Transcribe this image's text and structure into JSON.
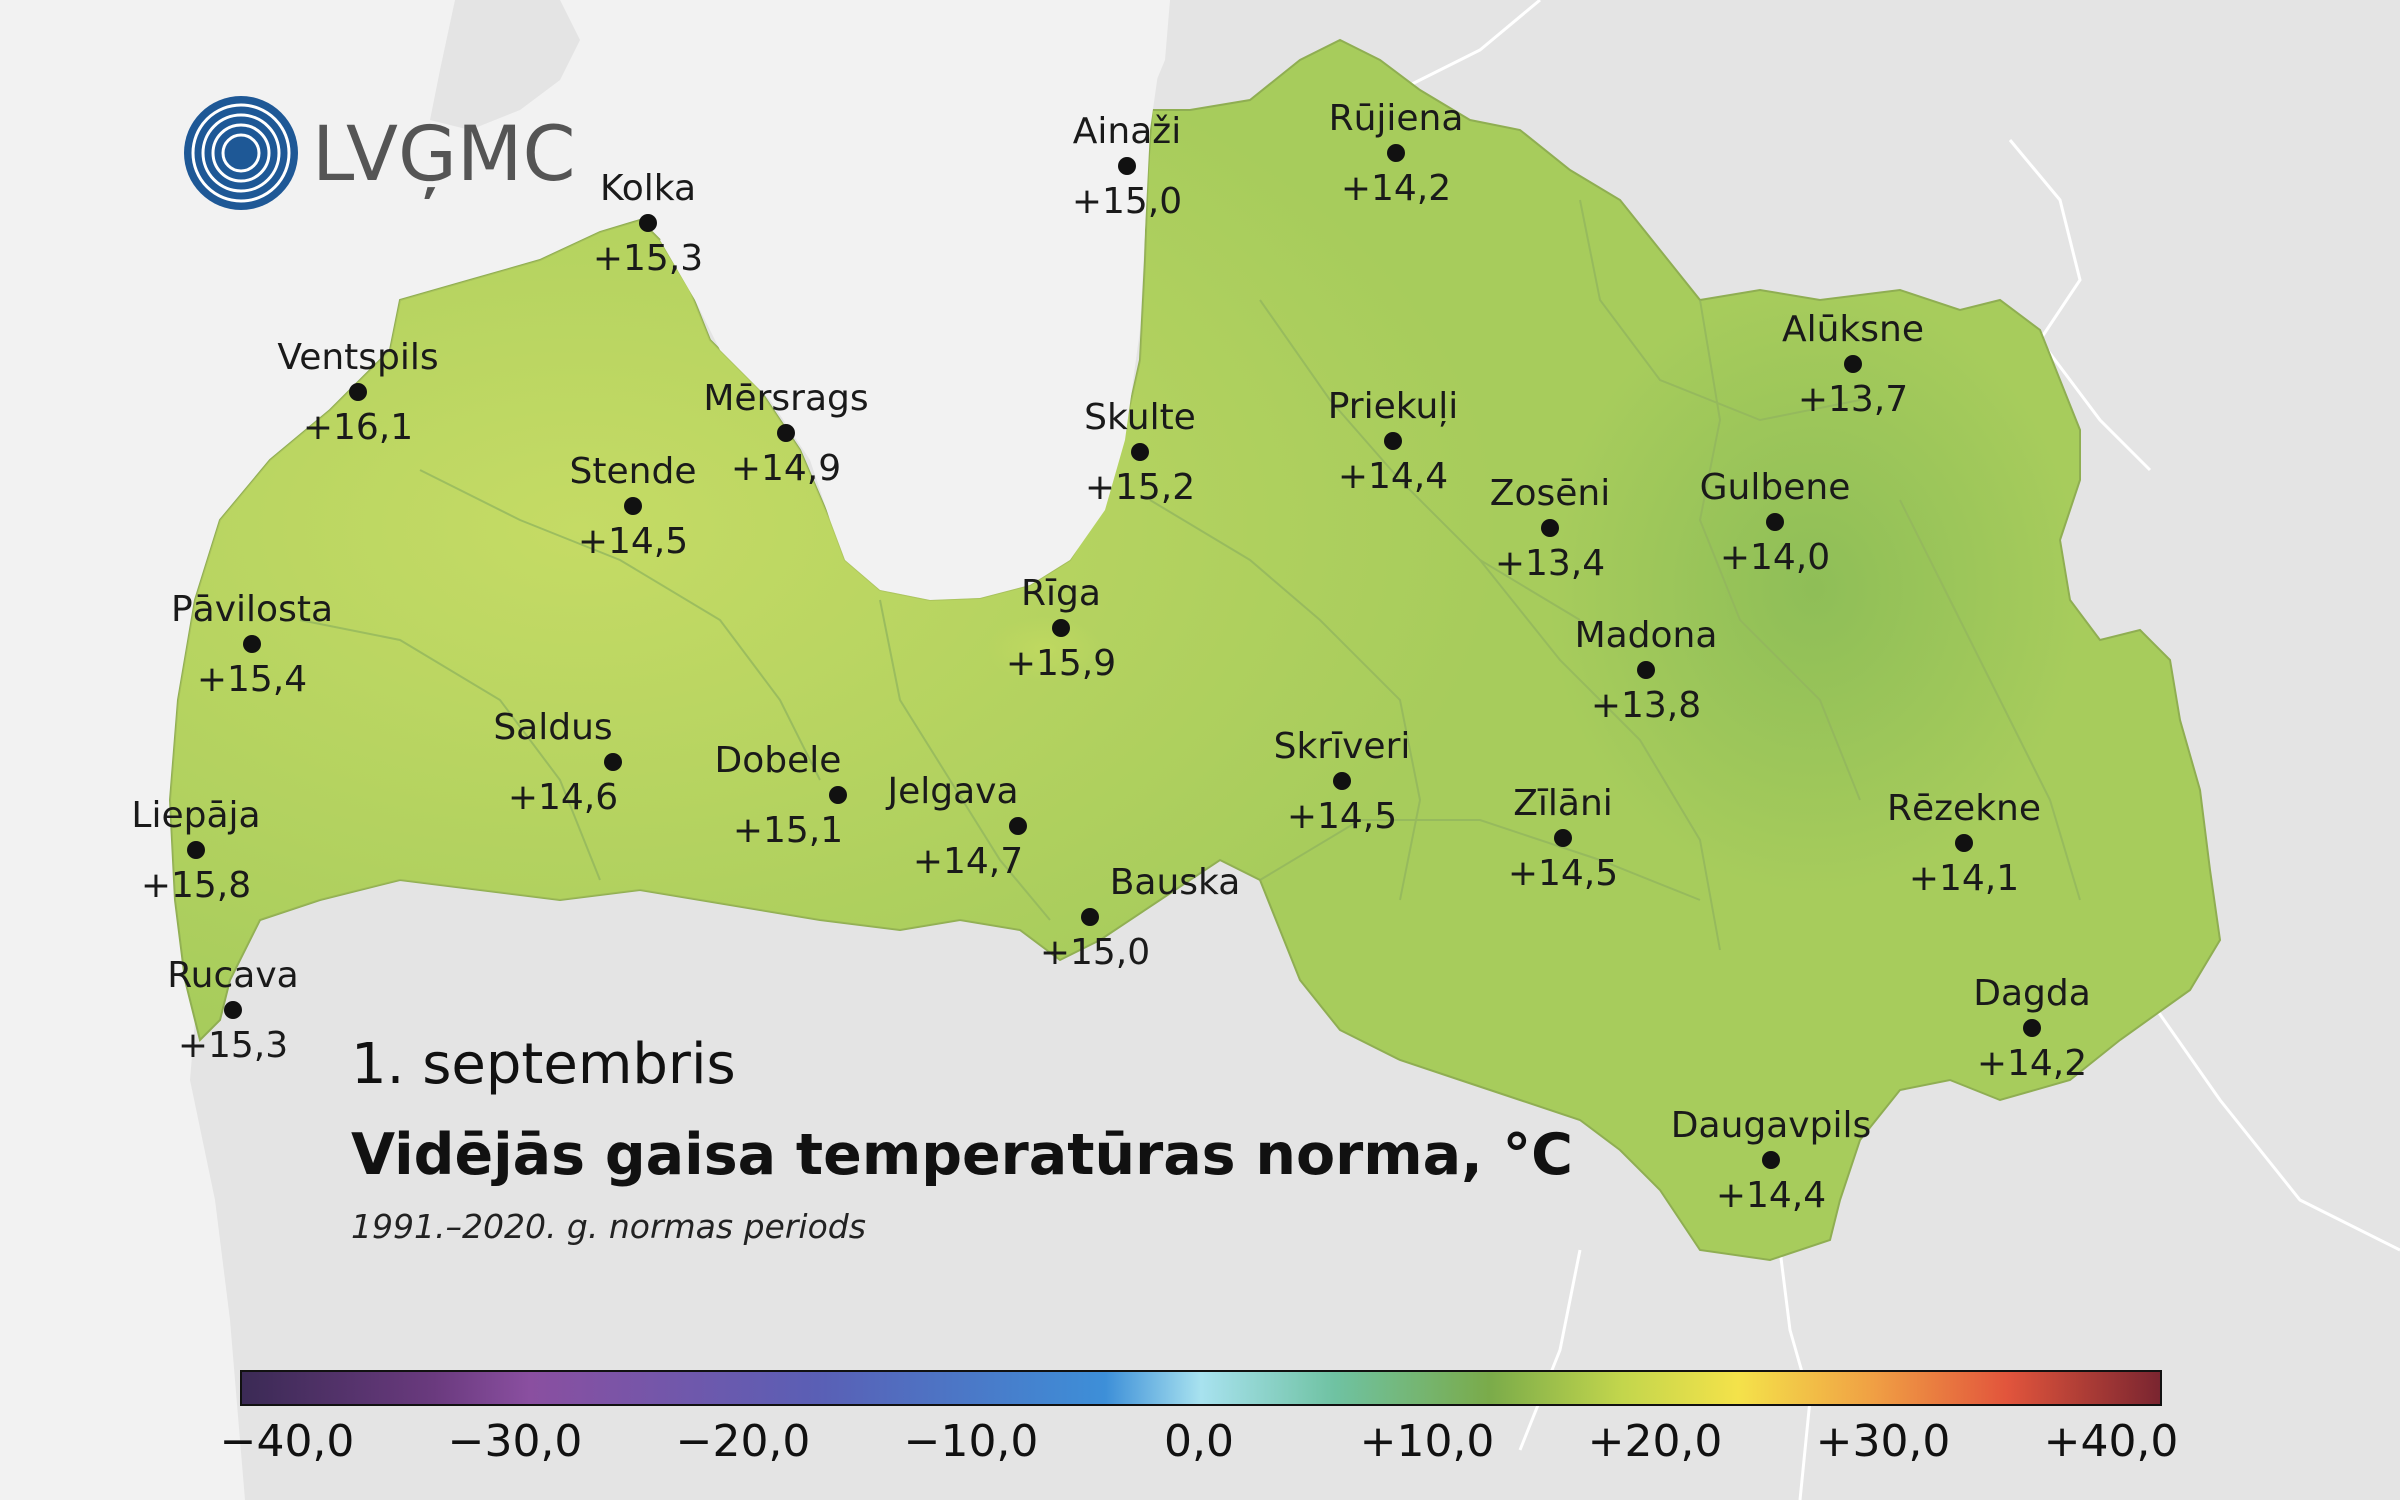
{
  "logo": {
    "text": "LVĢMC"
  },
  "date_label": "1. septembris",
  "title": "Vidējās gaisa temperatūras norma, °C",
  "subtitle": "1991.–2020. g. normas periods",
  "stations": [
    {
      "name": "Kolka",
      "value": "+15,3"
    },
    {
      "name": "Ventspils",
      "value": "+16,1"
    },
    {
      "name": "Mērsrags",
      "value": "+14,9"
    },
    {
      "name": "Stende",
      "value": "+14,5"
    },
    {
      "name": "Pāvilosta",
      "value": "+15,4"
    },
    {
      "name": "Saldus",
      "value": "+14,6"
    },
    {
      "name": "Liepāja",
      "value": "+15,8"
    },
    {
      "name": "Rucava",
      "value": "+15,3"
    },
    {
      "name": "Dobele",
      "value": "+15,1"
    },
    {
      "name": "Jelgava",
      "value": "+14,7"
    },
    {
      "name": "Bauska",
      "value": "+15,0"
    },
    {
      "name": "Rīga",
      "value": "+15,9"
    },
    {
      "name": "Ainaži",
      "value": "+15,0"
    },
    {
      "name": "Skulte",
      "value": "+15,2"
    },
    {
      "name": "Rūjiena",
      "value": "+14,2"
    },
    {
      "name": "Priekuļi",
      "value": "+14,4"
    },
    {
      "name": "Alūksne",
      "value": "+13,7"
    },
    {
      "name": "Zosēni",
      "value": "+13,4"
    },
    {
      "name": "Gulbene",
      "value": "+14,0"
    },
    {
      "name": "Madona",
      "value": "+13,8"
    },
    {
      "name": "Skrīveri",
      "value": "+14,5"
    },
    {
      "name": "Zīlāni",
      "value": "+14,5"
    },
    {
      "name": "Rēzekne",
      "value": "+14,1"
    },
    {
      "name": "Dagda",
      "value": "+14,2"
    },
    {
      "name": "Daugavpils",
      "value": "+14,4"
    }
  ],
  "colorbar": {
    "ticks": [
      "−40,0",
      "−30,0",
      "−20,0",
      "−10,0",
      "0,0",
      "+10,0",
      "+20,0",
      "+30,0",
      "+40,0"
    ]
  },
  "colors": {
    "sea": "#f2f2f2",
    "land_outside": "#e4e4e4",
    "latvia_fill": "#a7cc5c",
    "logo_blue": "#1e5896",
    "logo_gray": "#555555"
  }
}
